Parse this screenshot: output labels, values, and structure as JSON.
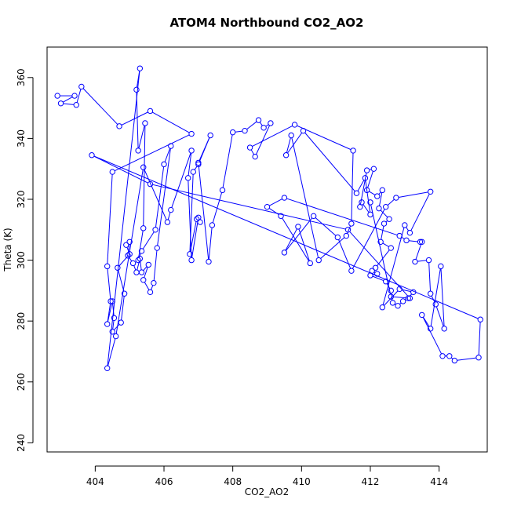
{
  "chart_data": {
    "type": "scatter",
    "title": "ATOM4 Northbound CO2_AO2",
    "xlabel": "CO2_AO2",
    "ylabel": "Theta (K)",
    "xlim": [
      402.6,
      415.4
    ],
    "ylim": [
      237,
      370
    ],
    "xticks": [
      404,
      406,
      408,
      410,
      412,
      414
    ],
    "yticks": [
      240,
      260,
      280,
      300,
      320,
      340,
      360
    ],
    "grid": false,
    "legend": "none",
    "color": "#0000ff",
    "marker": "open-circle",
    "connected": true,
    "series": [
      {
        "points": [
          [
            402.9,
            354
          ],
          [
            403.4,
            354
          ],
          [
            403.0,
            351.5
          ],
          [
            403.45,
            351
          ],
          [
            403.6,
            357
          ],
          [
            404.7,
            344
          ],
          [
            405.6,
            349
          ],
          [
            406.8,
            341.5
          ],
          [
            404.5,
            329
          ],
          [
            404.35,
            298
          ],
          [
            404.45,
            286.5
          ],
          [
            404.35,
            279
          ],
          [
            404.5,
            286.5
          ],
          [
            404.55,
            281
          ],
          [
            404.5,
            276.5
          ],
          [
            404.75,
            279.5
          ],
          [
            404.85,
            289
          ],
          [
            404.65,
            297.5
          ],
          [
            405.0,
            302
          ],
          [
            404.9,
            305
          ],
          [
            405.0,
            306
          ],
          [
            404.95,
            301.5
          ],
          [
            405.1,
            299
          ],
          [
            405.2,
            296
          ],
          [
            405.3,
            300.5
          ],
          [
            405.35,
            296
          ],
          [
            405.55,
            298.5
          ],
          [
            405.4,
            293.5
          ],
          [
            405.6,
            289.5
          ],
          [
            405.7,
            292.5
          ],
          [
            405.8,
            304
          ],
          [
            406.2,
            337.5
          ],
          [
            406.0,
            331.5
          ],
          [
            405.75,
            310
          ],
          [
            405.35,
            303
          ],
          [
            405.25,
            300
          ],
          [
            405.4,
            310.5
          ],
          [
            405.45,
            345
          ],
          [
            405.25,
            336
          ],
          [
            405.2,
            356
          ],
          [
            405.3,
            363
          ],
          [
            404.35,
            264.5
          ],
          [
            404.6,
            275
          ],
          [
            405.4,
            330.5
          ],
          [
            406.1,
            312.5
          ],
          [
            406.2,
            316.5
          ],
          [
            406.8,
            336
          ],
          [
            406.7,
            327
          ],
          [
            406.8,
            300
          ],
          [
            407.0,
            314
          ],
          [
            407.05,
            312.5
          ],
          [
            406.95,
            313.5
          ],
          [
            406.75,
            302
          ],
          [
            406.85,
            329
          ],
          [
            407.0,
            331.5
          ],
          [
            407.35,
            341
          ],
          [
            407.0,
            332
          ],
          [
            407.3,
            299.5
          ],
          [
            407.4,
            311.5
          ],
          [
            407.7,
            323
          ],
          [
            408.0,
            342
          ],
          [
            408.35,
            342.5
          ],
          [
            408.75,
            346
          ],
          [
            408.9,
            343.5
          ],
          [
            409.1,
            345
          ],
          [
            408.65,
            334
          ],
          [
            408.5,
            337
          ],
          [
            409.8,
            344.5
          ],
          [
            411.5,
            336
          ],
          [
            411.45,
            312
          ],
          [
            411.3,
            308
          ],
          [
            410.5,
            300
          ],
          [
            409.7,
            341
          ],
          [
            409.55,
            334.5
          ],
          [
            410.05,
            342.5
          ],
          [
            411.6,
            322
          ],
          [
            411.85,
            327
          ],
          [
            412.0,
            315
          ],
          [
            411.75,
            319
          ],
          [
            411.7,
            317.5
          ],
          [
            411.9,
            329.5
          ],
          [
            412.1,
            330
          ],
          [
            411.9,
            323
          ],
          [
            412.2,
            321
          ],
          [
            412.35,
            323
          ],
          [
            412.25,
            317
          ],
          [
            412.55,
            313.5
          ],
          [
            412.4,
            312
          ],
          [
            412.3,
            306
          ],
          [
            412.6,
            304
          ],
          [
            412.15,
            297.5
          ],
          [
            412.05,
            296.5
          ],
          [
            412.2,
            295.5
          ],
          [
            412.0,
            295
          ],
          [
            412.45,
            293
          ],
          [
            412.6,
            290
          ],
          [
            412.65,
            286
          ],
          [
            412.8,
            285
          ],
          [
            412.95,
            286.5
          ],
          [
            413.1,
            287.5
          ],
          [
            413.25,
            289.5
          ],
          [
            412.85,
            290.5
          ],
          [
            412.35,
            284.5
          ],
          [
            413.0,
            311.5
          ],
          [
            413.15,
            309
          ],
          [
            413.75,
            322.5
          ],
          [
            412.75,
            320.5
          ],
          [
            412.45,
            317.5
          ],
          [
            411.45,
            296.5
          ],
          [
            411.05,
            307.5
          ],
          [
            410.35,
            314.5
          ],
          [
            409.5,
            302.5
          ],
          [
            409.9,
            311
          ],
          [
            410.25,
            299
          ],
          [
            409.4,
            314.5
          ],
          [
            409.0,
            317.5
          ],
          [
            409.5,
            320.5
          ],
          [
            412.85,
            308
          ],
          [
            413.05,
            306.5
          ],
          [
            413.45,
            306
          ],
          [
            413.5,
            306
          ],
          [
            413.3,
            299.5
          ],
          [
            413.7,
            300
          ],
          [
            413.75,
            289
          ],
          [
            413.9,
            285.5
          ],
          [
            414.15,
            277.5
          ],
          [
            414.05,
            298
          ],
          [
            413.75,
            277.5
          ],
          [
            413.5,
            282
          ],
          [
            414.1,
            268.5
          ],
          [
            414.3,
            268.5
          ],
          [
            414.45,
            267
          ],
          [
            415.15,
            268
          ],
          [
            415.2,
            280.5
          ],
          [
            403.9,
            334.5
          ],
          [
            405.6,
            325
          ],
          [
            411.35,
            310
          ],
          [
            413.15,
            287.5
          ],
          [
            412.6,
            288
          ],
          [
            412.0,
            319
          ]
        ]
      }
    ]
  }
}
